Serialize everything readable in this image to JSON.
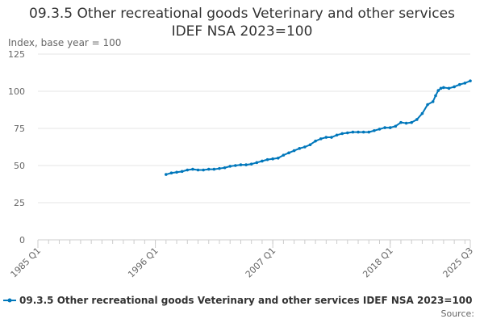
{
  "chart_data": {
    "type": "line",
    "title": "09.3.5 Other recreational goods Veterinary and other services IDEF NSA 2023=100",
    "ylabel": "Index, base year = 100",
    "xlabel": "",
    "ylim": [
      0,
      125
    ],
    "yticks": [
      "0",
      "25",
      "50",
      "75",
      "100",
      "125"
    ],
    "xlim": [
      1985.0,
      2025.5
    ],
    "xticks": [
      {
        "label": "1985 Q1",
        "x": 1985.0
      },
      {
        "label": "1996 Q1",
        "x": 1996.0
      },
      {
        "label": "2007 Q1",
        "x": 2007.0
      },
      {
        "label": "2018 Q1",
        "x": 2018.0
      },
      {
        "label": "2025 Q3",
        "x": 2025.5
      }
    ],
    "grid": true,
    "legend_position": "bottom",
    "color": "#0077bb",
    "series": [
      {
        "name": "09.3.5 Other recreational goods Veterinary and other services IDEF NSA 2023=100",
        "x": [
          1997.0,
          1997.5,
          1998.0,
          1998.5,
          1999.0,
          1999.5,
          2000.0,
          2000.5,
          2001.0,
          2001.5,
          2002.0,
          2002.5,
          2003.0,
          2003.5,
          2004.0,
          2004.5,
          2005.0,
          2005.5,
          2006.0,
          2006.5,
          2007.0,
          2007.5,
          2008.0,
          2008.5,
          2009.0,
          2009.5,
          2010.0,
          2010.5,
          2011.0,
          2011.5,
          2012.0,
          2012.5,
          2013.0,
          2013.5,
          2014.0,
          2014.5,
          2015.0,
          2015.5,
          2016.0,
          2016.5,
          2017.0,
          2017.5,
          2018.0,
          2018.5,
          2019.0,
          2019.5,
          2020.0,
          2020.5,
          2021.0,
          2021.5,
          2022.0,
          2022.25,
          2022.5,
          2022.75,
          2023.0,
          2023.5,
          2024.0,
          2024.5,
          2025.0,
          2025.5
        ],
        "y": [
          44.0,
          45.0,
          45.5,
          46.0,
          47.0,
          47.5,
          47.0,
          47.0,
          47.5,
          47.5,
          48.0,
          48.5,
          49.5,
          50.0,
          50.5,
          50.5,
          51.0,
          52.0,
          53.0,
          54.0,
          54.5,
          55.0,
          57.0,
          58.5,
          60.0,
          61.5,
          62.5,
          64.0,
          66.5,
          68.0,
          69.0,
          69.0,
          70.5,
          71.5,
          72.0,
          72.5,
          72.5,
          72.5,
          72.5,
          73.5,
          74.5,
          75.5,
          75.5,
          76.5,
          79.0,
          78.5,
          79.0,
          81.0,
          85.0,
          91.0,
          93.0,
          97.0,
          100.5,
          102.0,
          102.5,
          102.0,
          103.0,
          104.5,
          105.5,
          107.0
        ]
      }
    ]
  },
  "legend": {
    "label": "09.3.5 Other recreational goods Veterinary and other services IDEF NSA 2023=100"
  },
  "footer": {
    "source_label": "Source:"
  }
}
